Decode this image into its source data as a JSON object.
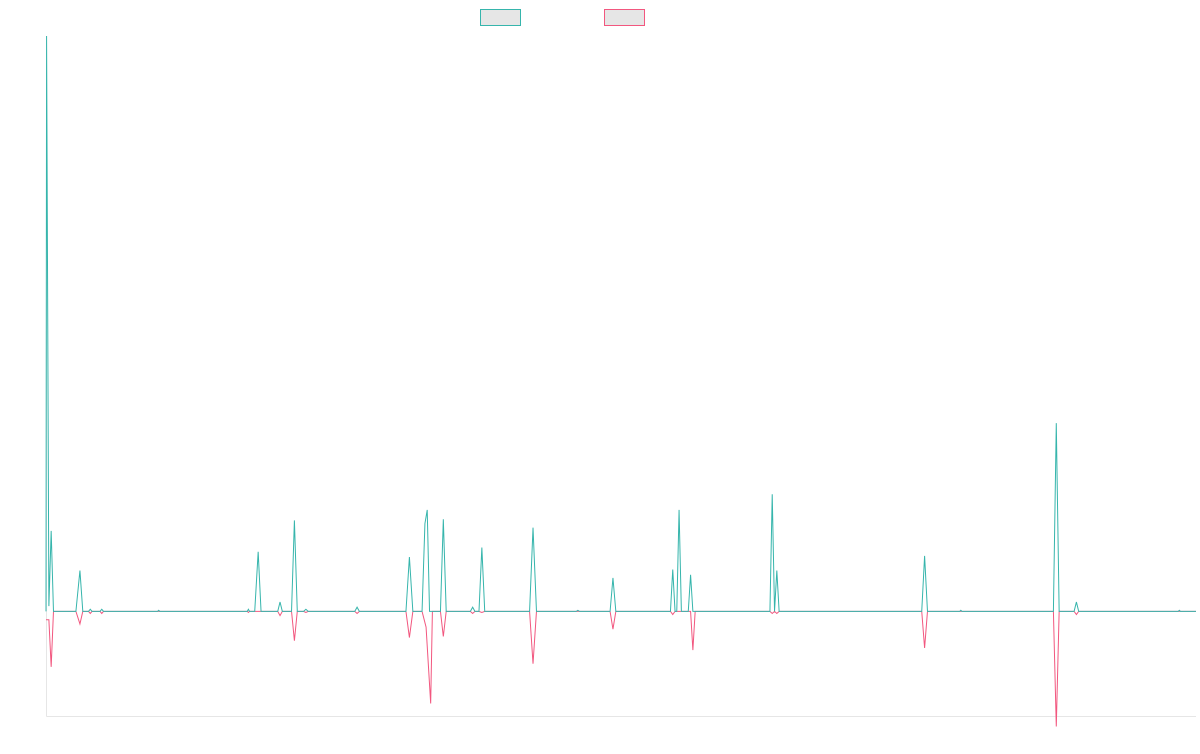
{
  "colors": {
    "series_a": "#36b5ac",
    "series_b": "#f2577f",
    "axis": "#e6e6e6",
    "legend_fill": "#e6e6e6"
  },
  "chart_data": {
    "type": "line",
    "title": "",
    "xlabel": "",
    "ylabel": "",
    "x_range": [
      0,
      100
    ],
    "ylim": [
      -100,
      550
    ],
    "grid": false,
    "legend": "top-center",
    "series": [
      {
        "points": [
          [
            0,
            0
          ],
          [
            0.05,
            550
          ],
          [
            0.25,
            5
          ],
          [
            0.45,
            77
          ],
          [
            0.65,
            0
          ],
          [
            2.6,
            0
          ],
          [
            2.95,
            39
          ],
          [
            3.2,
            0
          ],
          [
            3.7,
            0
          ],
          [
            3.85,
            2
          ],
          [
            4.0,
            0
          ],
          [
            4.7,
            0
          ],
          [
            4.85,
            2
          ],
          [
            5.0,
            0
          ],
          [
            9.7,
            0
          ],
          [
            9.8,
            1
          ],
          [
            9.9,
            0
          ],
          [
            17.5,
            0
          ],
          [
            17.6,
            2
          ],
          [
            17.7,
            0
          ],
          [
            18.15,
            0
          ],
          [
            18.45,
            57
          ],
          [
            18.7,
            0
          ],
          [
            20.15,
            0
          ],
          [
            20.35,
            9
          ],
          [
            20.55,
            0
          ],
          [
            21.35,
            0
          ],
          [
            21.6,
            87
          ],
          [
            21.85,
            0
          ],
          [
            22.4,
            0
          ],
          [
            22.6,
            2
          ],
          [
            22.8,
            0
          ],
          [
            26.85,
            0
          ],
          [
            27.05,
            4
          ],
          [
            27.25,
            0
          ],
          [
            31.3,
            0
          ],
          [
            31.6,
            52
          ],
          [
            31.9,
            0
          ],
          [
            32.7,
            0
          ],
          [
            32.95,
            84
          ],
          [
            33.15,
            97
          ],
          [
            33.35,
            0
          ],
          [
            34.3,
            0
          ],
          [
            34.55,
            88
          ],
          [
            34.8,
            0
          ],
          [
            36.9,
            0
          ],
          [
            37.1,
            4
          ],
          [
            37.3,
            0
          ],
          [
            37.65,
            0
          ],
          [
            37.9,
            61
          ],
          [
            38.15,
            0
          ],
          [
            42.05,
            0
          ],
          [
            42.35,
            80
          ],
          [
            42.65,
            0
          ],
          [
            46.1,
            0
          ],
          [
            46.25,
            1
          ],
          [
            46.4,
            0
          ],
          [
            49.05,
            0
          ],
          [
            49.3,
            32
          ],
          [
            49.55,
            0
          ],
          [
            54.3,
            0
          ],
          [
            54.5,
            40
          ],
          [
            54.7,
            0
          ],
          [
            54.85,
            0
          ],
          [
            55.05,
            97
          ],
          [
            55.25,
            0
          ],
          [
            55.85,
            0
          ],
          [
            56.05,
            35
          ],
          [
            56.25,
            0
          ],
          [
            62.95,
            0
          ],
          [
            63.15,
            112
          ],
          [
            63.35,
            0
          ],
          [
            63.35,
            0
          ],
          [
            63.55,
            39
          ],
          [
            63.75,
            0
          ],
          [
            76.15,
            0
          ],
          [
            76.4,
            53
          ],
          [
            76.65,
            0
          ],
          [
            79.45,
            0
          ],
          [
            79.55,
            1
          ],
          [
            79.65,
            0
          ],
          [
            87.6,
            0
          ],
          [
            87.85,
            180
          ],
          [
            88.1,
            0
          ],
          [
            89.4,
            0
          ],
          [
            89.6,
            9
          ],
          [
            89.8,
            0
          ],
          [
            98.45,
            0
          ],
          [
            98.55,
            1
          ],
          [
            98.65,
            0
          ],
          [
            100,
            0
          ]
        ]
      },
      {
        "points": [
          [
            0,
            -8
          ],
          [
            0.05,
            -8
          ],
          [
            0.25,
            -8
          ],
          [
            0.45,
            -53
          ],
          [
            0.65,
            0
          ],
          [
            2.6,
            0
          ],
          [
            2.95,
            -12
          ],
          [
            3.2,
            0
          ],
          [
            3.7,
            0
          ],
          [
            3.85,
            -2
          ],
          [
            4.0,
            0
          ],
          [
            4.7,
            0
          ],
          [
            4.85,
            -2
          ],
          [
            5.0,
            0
          ],
          [
            17.5,
            0
          ],
          [
            17.6,
            -1
          ],
          [
            17.7,
            0
          ],
          [
            20.15,
            0
          ],
          [
            20.35,
            -4
          ],
          [
            20.55,
            0
          ],
          [
            21.35,
            0
          ],
          [
            21.6,
            -28
          ],
          [
            21.85,
            0
          ],
          [
            22.4,
            0
          ],
          [
            22.6,
            -1
          ],
          [
            22.8,
            0
          ],
          [
            26.85,
            0
          ],
          [
            27.05,
            -2
          ],
          [
            27.25,
            0
          ],
          [
            31.3,
            0
          ],
          [
            31.6,
            -25
          ],
          [
            31.9,
            0
          ],
          [
            32.7,
            0
          ],
          [
            33.05,
            -15
          ],
          [
            33.45,
            -88
          ],
          [
            33.6,
            0
          ],
          [
            34.3,
            0
          ],
          [
            34.55,
            -24
          ],
          [
            34.8,
            0
          ],
          [
            36.9,
            0
          ],
          [
            37.1,
            -2
          ],
          [
            37.3,
            0
          ],
          [
            37.65,
            0
          ],
          [
            37.9,
            -1
          ],
          [
            38.15,
            0
          ],
          [
            42.05,
            0
          ],
          [
            42.35,
            -50
          ],
          [
            42.65,
            0
          ],
          [
            49.05,
            0
          ],
          [
            49.3,
            -17
          ],
          [
            49.55,
            0
          ],
          [
            54.3,
            0
          ],
          [
            54.5,
            -3
          ],
          [
            54.7,
            0
          ],
          [
            56.05,
            0
          ],
          [
            56.25,
            -37
          ],
          [
            56.45,
            0
          ],
          [
            62.95,
            0
          ],
          [
            63.15,
            -2
          ],
          [
            63.35,
            0
          ],
          [
            63.35,
            0
          ],
          [
            63.55,
            -2
          ],
          [
            63.75,
            0
          ],
          [
            76.15,
            0
          ],
          [
            76.4,
            -35
          ],
          [
            76.65,
            0
          ],
          [
            87.6,
            0
          ],
          [
            87.85,
            -110
          ],
          [
            88.1,
            0
          ],
          [
            89.4,
            0
          ],
          [
            89.6,
            -3
          ],
          [
            89.8,
            0
          ],
          [
            100,
            0
          ]
        ]
      }
    ]
  }
}
